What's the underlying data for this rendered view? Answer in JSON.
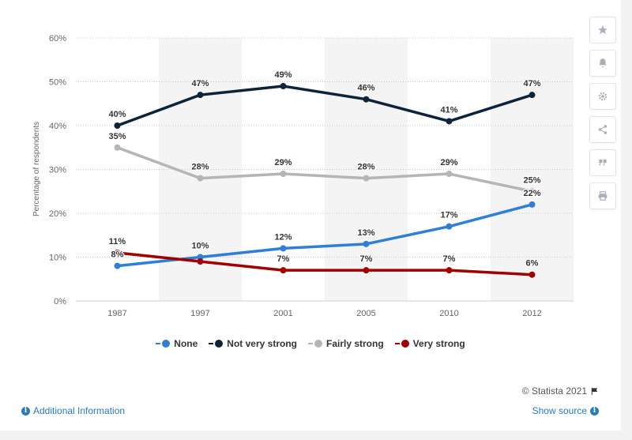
{
  "chart_data": {
    "type": "line",
    "categories": [
      "1987",
      "1997",
      "2001",
      "2005",
      "2010",
      "2012"
    ],
    "ylabel": "Percentage of respondents",
    "ylim": [
      0,
      60
    ],
    "yticks": [
      "0%",
      "10%",
      "20%",
      "30%",
      "40%",
      "50%",
      "60%"
    ],
    "grid": true,
    "legend_position": "bottom",
    "series": [
      {
        "name": "None",
        "color": "#2f7ed8",
        "values": [
          8,
          10,
          12,
          13,
          17,
          22
        ],
        "labels": [
          "8%",
          "10%",
          "12%",
          "13%",
          "17%",
          "22%"
        ]
      },
      {
        "name": "Not very strong",
        "color": "#0d233a",
        "values": [
          40,
          47,
          49,
          46,
          41,
          47
        ],
        "labels": [
          "40%",
          "47%",
          "49%",
          "46%",
          "41%",
          "47%"
        ]
      },
      {
        "name": "Fairly strong",
        "color": "#b5b5b5",
        "values": [
          35,
          28,
          29,
          28,
          29,
          25
        ],
        "labels": [
          "35%",
          "28%",
          "29%",
          "28%",
          "29%",
          "25%"
        ]
      },
      {
        "name": "Very strong",
        "color": "#a00000",
        "values": [
          11,
          9,
          7,
          7,
          7,
          6
        ],
        "labels": [
          "11%",
          "",
          "7%",
          "7%",
          "7%",
          "6%"
        ]
      }
    ]
  },
  "footer": {
    "credit": "© Statista 2021",
    "additional_info": "Additional Information",
    "show_source": "Show source"
  },
  "toolbar": {
    "icons": [
      "star-icon",
      "bell-icon",
      "gear-icon",
      "share-icon",
      "quote-icon",
      "print-icon"
    ]
  }
}
